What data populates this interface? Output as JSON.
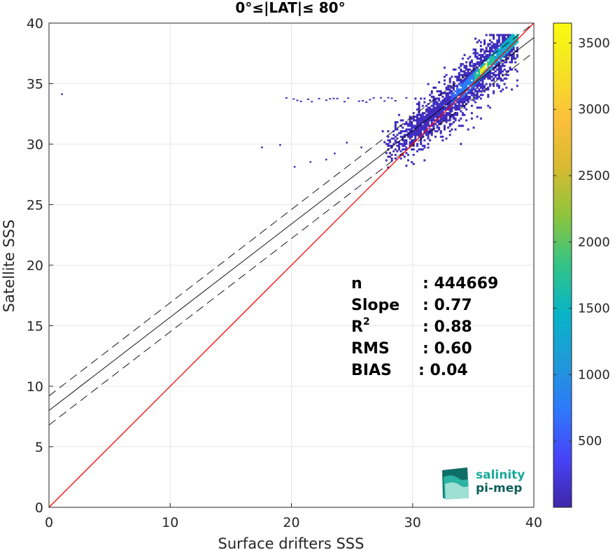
{
  "chart_data": {
    "type": "heatmap",
    "title": "0°≤|LAT|≤ 80°",
    "xlabel": "Surface drifters SSS",
    "ylabel": "Satellite SSS",
    "xlim": [
      0,
      40
    ],
    "ylim": [
      0,
      40
    ],
    "xticks": [
      "0",
      "10",
      "20",
      "30",
      "40"
    ],
    "yticks": [
      "0",
      "5",
      "10",
      "15",
      "20",
      "25",
      "30",
      "35",
      "40"
    ],
    "grid": true,
    "colorbar": {
      "range": [
        0,
        3650
      ],
      "ticks": [
        "500",
        "1000",
        "1500",
        "2000",
        "2500",
        "3000",
        "3500"
      ],
      "colors": [
        "#3e26a8",
        "#4743f8",
        "#2f78fb",
        "#1e9ad8",
        "#08b4c7",
        "#31c487",
        "#8cc53d",
        "#d6ba30",
        "#fcbf3b",
        "#f5e225",
        "#f9fb0e"
      ]
    },
    "lines": {
      "one_to_one": {
        "slope": 1,
        "intercept": 0,
        "color": "#ff0000"
      },
      "fit": {
        "slope": 0.77,
        "intercept": 8.0,
        "color": "#000000"
      },
      "fit_upper": {
        "slope": 0.77,
        "intercept": 9.2,
        "color": "#000000",
        "dash": true
      },
      "fit_lower": {
        "slope": 0.77,
        "intercept": 6.8,
        "color": "#000000",
        "dash": true
      }
    },
    "density_clusters": [
      {
        "x": [
          29.5,
          38.5
        ],
        "y": [
          27.5,
          38.5
        ],
        "level": 0.08
      },
      {
        "x": [
          32,
          38
        ],
        "y": [
          31,
          38
        ],
        "level": 0.2
      },
      {
        "x": [
          34.5,
          37
        ],
        "y": [
          34.5,
          37
        ],
        "level": 0.55
      },
      {
        "x": [
          35.5,
          36.2
        ],
        "y": [
          35.5,
          36.2
        ],
        "level": 1.0
      }
    ],
    "stats": [
      {
        "label": "n",
        "value": ": 444669"
      },
      {
        "label": "Slope",
        "value": ": 0.77"
      },
      {
        "label": "R",
        "sup": "2",
        "value": ": 0.88"
      },
      {
        "label": "RMS",
        "value": ": 0.60"
      },
      {
        "label": "BIAS",
        "value": ": 0.04"
      }
    ]
  },
  "logo": {
    "line1": "salinity",
    "line2": "pi-mep",
    "color1": "#1aa99a",
    "color2": "#0f5f5a"
  }
}
